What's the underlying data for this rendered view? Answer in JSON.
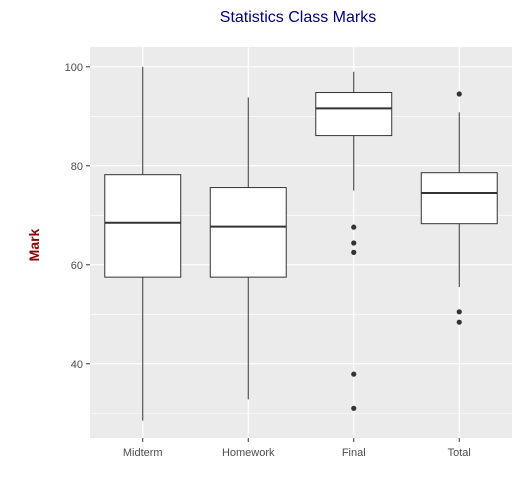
{
  "chart_data": {
    "type": "box",
    "title": "Statistics Class Marks",
    "xlabel": "",
    "ylabel": "Mark",
    "ylim": [
      25,
      104
    ],
    "yticks": [
      40,
      60,
      80,
      100
    ],
    "y_minor_ticks": [
      30,
      50,
      70,
      90
    ],
    "grid": true,
    "legend": "none",
    "categories": [
      "Midterm",
      "Homework",
      "Final",
      "Total"
    ],
    "boxes": [
      {
        "category": "Midterm",
        "whisker_low": 28.5,
        "q1": 57.5,
        "median": 68.5,
        "q3": 78.2,
        "whisker_high": 100,
        "outliers": []
      },
      {
        "category": "Homework",
        "whisker_low": 32.8,
        "q1": 57.5,
        "median": 67.7,
        "q3": 75.6,
        "whisker_high": 93.8,
        "outliers": []
      },
      {
        "category": "Final",
        "whisker_low": 75,
        "q1": 86.1,
        "median": 91.6,
        "q3": 94.8,
        "whisker_high": 99,
        "outliers": [
          67.6,
          64.4,
          62.5,
          37.9,
          31
        ]
      },
      {
        "category": "Total",
        "whisker_low": 55.5,
        "q1": 68.3,
        "median": 74.5,
        "q3": 78.6,
        "whisker_high": 90.8,
        "outliers": [
          94.5,
          50.5,
          48.4
        ]
      }
    ],
    "colors": {
      "panel": "#ebebeb",
      "grid_major": "#ffffff",
      "box_fill": "#ffffff",
      "box_stroke": "#333333",
      "title": "#00007a",
      "ylabel": "#8b0000",
      "tick_label": "#4d4d4d"
    }
  }
}
